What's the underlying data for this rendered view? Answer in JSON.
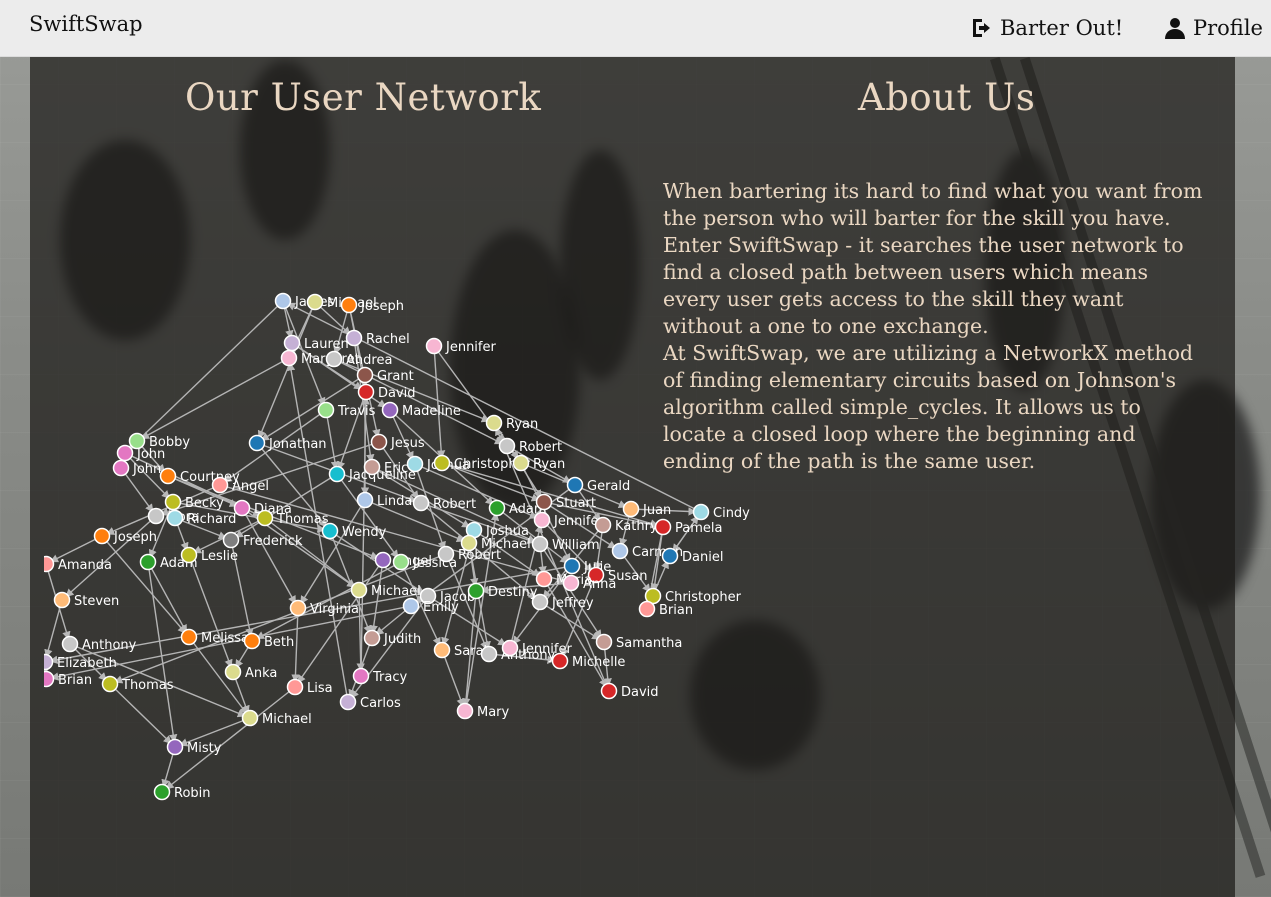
{
  "nav": {
    "brand": "SwiftSwap",
    "barter_label": "Barter Out!",
    "profile_label": "Profile",
    "barter_icon": "sign-out-icon",
    "profile_icon": "user-icon"
  },
  "network_section": {
    "title": "Our User Network",
    "nodes": [
      {
        "label": "James",
        "color": "#aec7e8"
      },
      {
        "label": "Michael",
        "color": "#dbdb8d"
      },
      {
        "label": "Joseph",
        "color": "#ff7f0e"
      },
      {
        "label": "Lauren",
        "color": "#c5b0d5"
      },
      {
        "label": "Rachel",
        "color": "#c5b0d5"
      },
      {
        "label": "Margaret",
        "color": "#f7b6d2"
      },
      {
        "label": "Andrea",
        "color": "#c7c7c7"
      },
      {
        "label": "Jennifer",
        "color": "#f7b6d2"
      },
      {
        "label": "Grant",
        "color": "#8c564b"
      },
      {
        "label": "David",
        "color": "#d62728"
      },
      {
        "label": "Travis",
        "color": "#98df8a"
      },
      {
        "label": "Madeline",
        "color": "#9467bd"
      },
      {
        "label": "Ryan",
        "color": "#dbdb8d"
      },
      {
        "label": "Bobby",
        "color": "#98df8a"
      },
      {
        "label": "John",
        "color": "#e377c2"
      },
      {
        "label": "John",
        "color": "#e377c2"
      },
      {
        "label": "Jonathan",
        "color": "#1f77b4"
      },
      {
        "label": "Jesus",
        "color": "#8c564b"
      },
      {
        "label": "Robert",
        "color": "#c7c7c7"
      },
      {
        "label": "Courtney",
        "color": "#ff7f0e"
      },
      {
        "label": "Jacqueline",
        "color": "#17becf"
      },
      {
        "label": "Eric",
        "color": "#c49c94"
      },
      {
        "label": "Joshua",
        "color": "#9edae5"
      },
      {
        "label": "Christopher",
        "color": "#bcbd22"
      },
      {
        "label": "Ryan",
        "color": "#dbdb8d"
      },
      {
        "label": "Angel",
        "color": "#ff9896"
      },
      {
        "label": "Gerald",
        "color": "#1f77b4"
      },
      {
        "label": "Becky",
        "color": "#bcbd22"
      },
      {
        "label": "Linda",
        "color": "#aec7e8"
      },
      {
        "label": "Robert",
        "color": "#c7c7c7"
      },
      {
        "label": "Adam",
        "color": "#2ca02c"
      },
      {
        "label": "Stuart",
        "color": "#8c564b"
      },
      {
        "label": "Juan",
        "color": "#ffbb78"
      },
      {
        "label": "Cindy",
        "color": "#9edae5"
      },
      {
        "label": "Nora",
        "color": "#c7c7c7"
      },
      {
        "label": "Richard",
        "color": "#9edae5"
      },
      {
        "label": "Diana",
        "color": "#e377c2"
      },
      {
        "label": "Thomas",
        "color": "#bcbd22"
      },
      {
        "label": "Jennifer",
        "color": "#f7b6d2"
      },
      {
        "label": "Kathryn",
        "color": "#c49c94"
      },
      {
        "label": "Pamela",
        "color": "#d62728"
      },
      {
        "label": "Joseph",
        "color": "#ff7f0e"
      },
      {
        "label": "Wendy",
        "color": "#17becf"
      },
      {
        "label": "Joshua",
        "color": "#9edae5"
      },
      {
        "label": "Frederick",
        "color": "#7f7f7f"
      },
      {
        "label": "Michael",
        "color": "#dbdb8d"
      },
      {
        "label": "William",
        "color": "#c7c7c7"
      },
      {
        "label": "Carmen",
        "color": "#aec7e8"
      },
      {
        "label": "Daniel",
        "color": "#1f77b4"
      },
      {
        "label": "Amanda",
        "color": "#ff9896"
      },
      {
        "label": "Adam",
        "color": "#2ca02c"
      },
      {
        "label": "Leslie",
        "color": "#bcbd22"
      },
      {
        "label": "Angel",
        "color": "#9467bd"
      },
      {
        "label": "Jessica",
        "color": "#98df8a"
      },
      {
        "label": "Robert",
        "color": "#c7c7c7"
      },
      {
        "label": "Julie",
        "color": "#1f77b4"
      },
      {
        "label": "Susan",
        "color": "#d62728"
      },
      {
        "label": "Maria",
        "color": "#ff9896"
      },
      {
        "label": "Anna",
        "color": "#f7b6d2"
      },
      {
        "label": "Steven",
        "color": "#ffbb78"
      },
      {
        "label": "Michael",
        "color": "#dbdb8d"
      },
      {
        "label": "Jacob",
        "color": "#c7c7c7"
      },
      {
        "label": "Destiny",
        "color": "#2ca02c"
      },
      {
        "label": "Jeffrey",
        "color": "#c7c7c7"
      },
      {
        "label": "Christopher",
        "color": "#bcbd22"
      },
      {
        "label": "Virginia",
        "color": "#ffbb78"
      },
      {
        "label": "Emily",
        "color": "#aec7e8"
      },
      {
        "label": "Brian",
        "color": "#ff9896"
      },
      {
        "label": "Anthony",
        "color": "#c7c7c7"
      },
      {
        "label": "Melissa",
        "color": "#ff7f0e"
      },
      {
        "label": "Beth",
        "color": "#ff7f0e"
      },
      {
        "label": "Judith",
        "color": "#c49c94"
      },
      {
        "label": "Samantha",
        "color": "#c49c94"
      },
      {
        "label": "Sarah",
        "color": "#ffbb78"
      },
      {
        "label": "Anthony",
        "color": "#c7c7c7"
      },
      {
        "label": "Jennifer",
        "color": "#f7b6d2"
      },
      {
        "label": "Elizabeth",
        "color": "#c5b0d5"
      },
      {
        "label": "Michelle",
        "color": "#d62728"
      },
      {
        "label": "Brian",
        "color": "#e377c2"
      },
      {
        "label": "Thomas",
        "color": "#bcbd22"
      },
      {
        "label": "Anka",
        "color": "#dbdb8d"
      },
      {
        "label": "Tracy",
        "color": "#e377c2"
      },
      {
        "label": "Lisa",
        "color": "#ff9896"
      },
      {
        "label": "Carlos",
        "color": "#c5b0d5"
      },
      {
        "label": "David",
        "color": "#d62728"
      },
      {
        "label": "Mary",
        "color": "#f7b6d2"
      },
      {
        "label": "Michael",
        "color": "#dbdb8d"
      },
      {
        "label": "Misty",
        "color": "#9467bd"
      },
      {
        "label": "Robin",
        "color": "#2ca02c"
      }
    ]
  },
  "about_section": {
    "title": "About Us",
    "paragraph1": "When bartering its hard to find what you want from the person who will barter for the skill you have. Enter SwiftSwap - it searches the user network to find a closed path between users which means every user gets access to the skill they want without a one to one exchange.",
    "paragraph2": "At SwiftSwap, we are utilizing a NetworkX method of finding elementary circuits based on Johnson's algorithm called simple_cycles. It allows us to locate a closed loop where the beginning and ending of the path is the same user."
  }
}
